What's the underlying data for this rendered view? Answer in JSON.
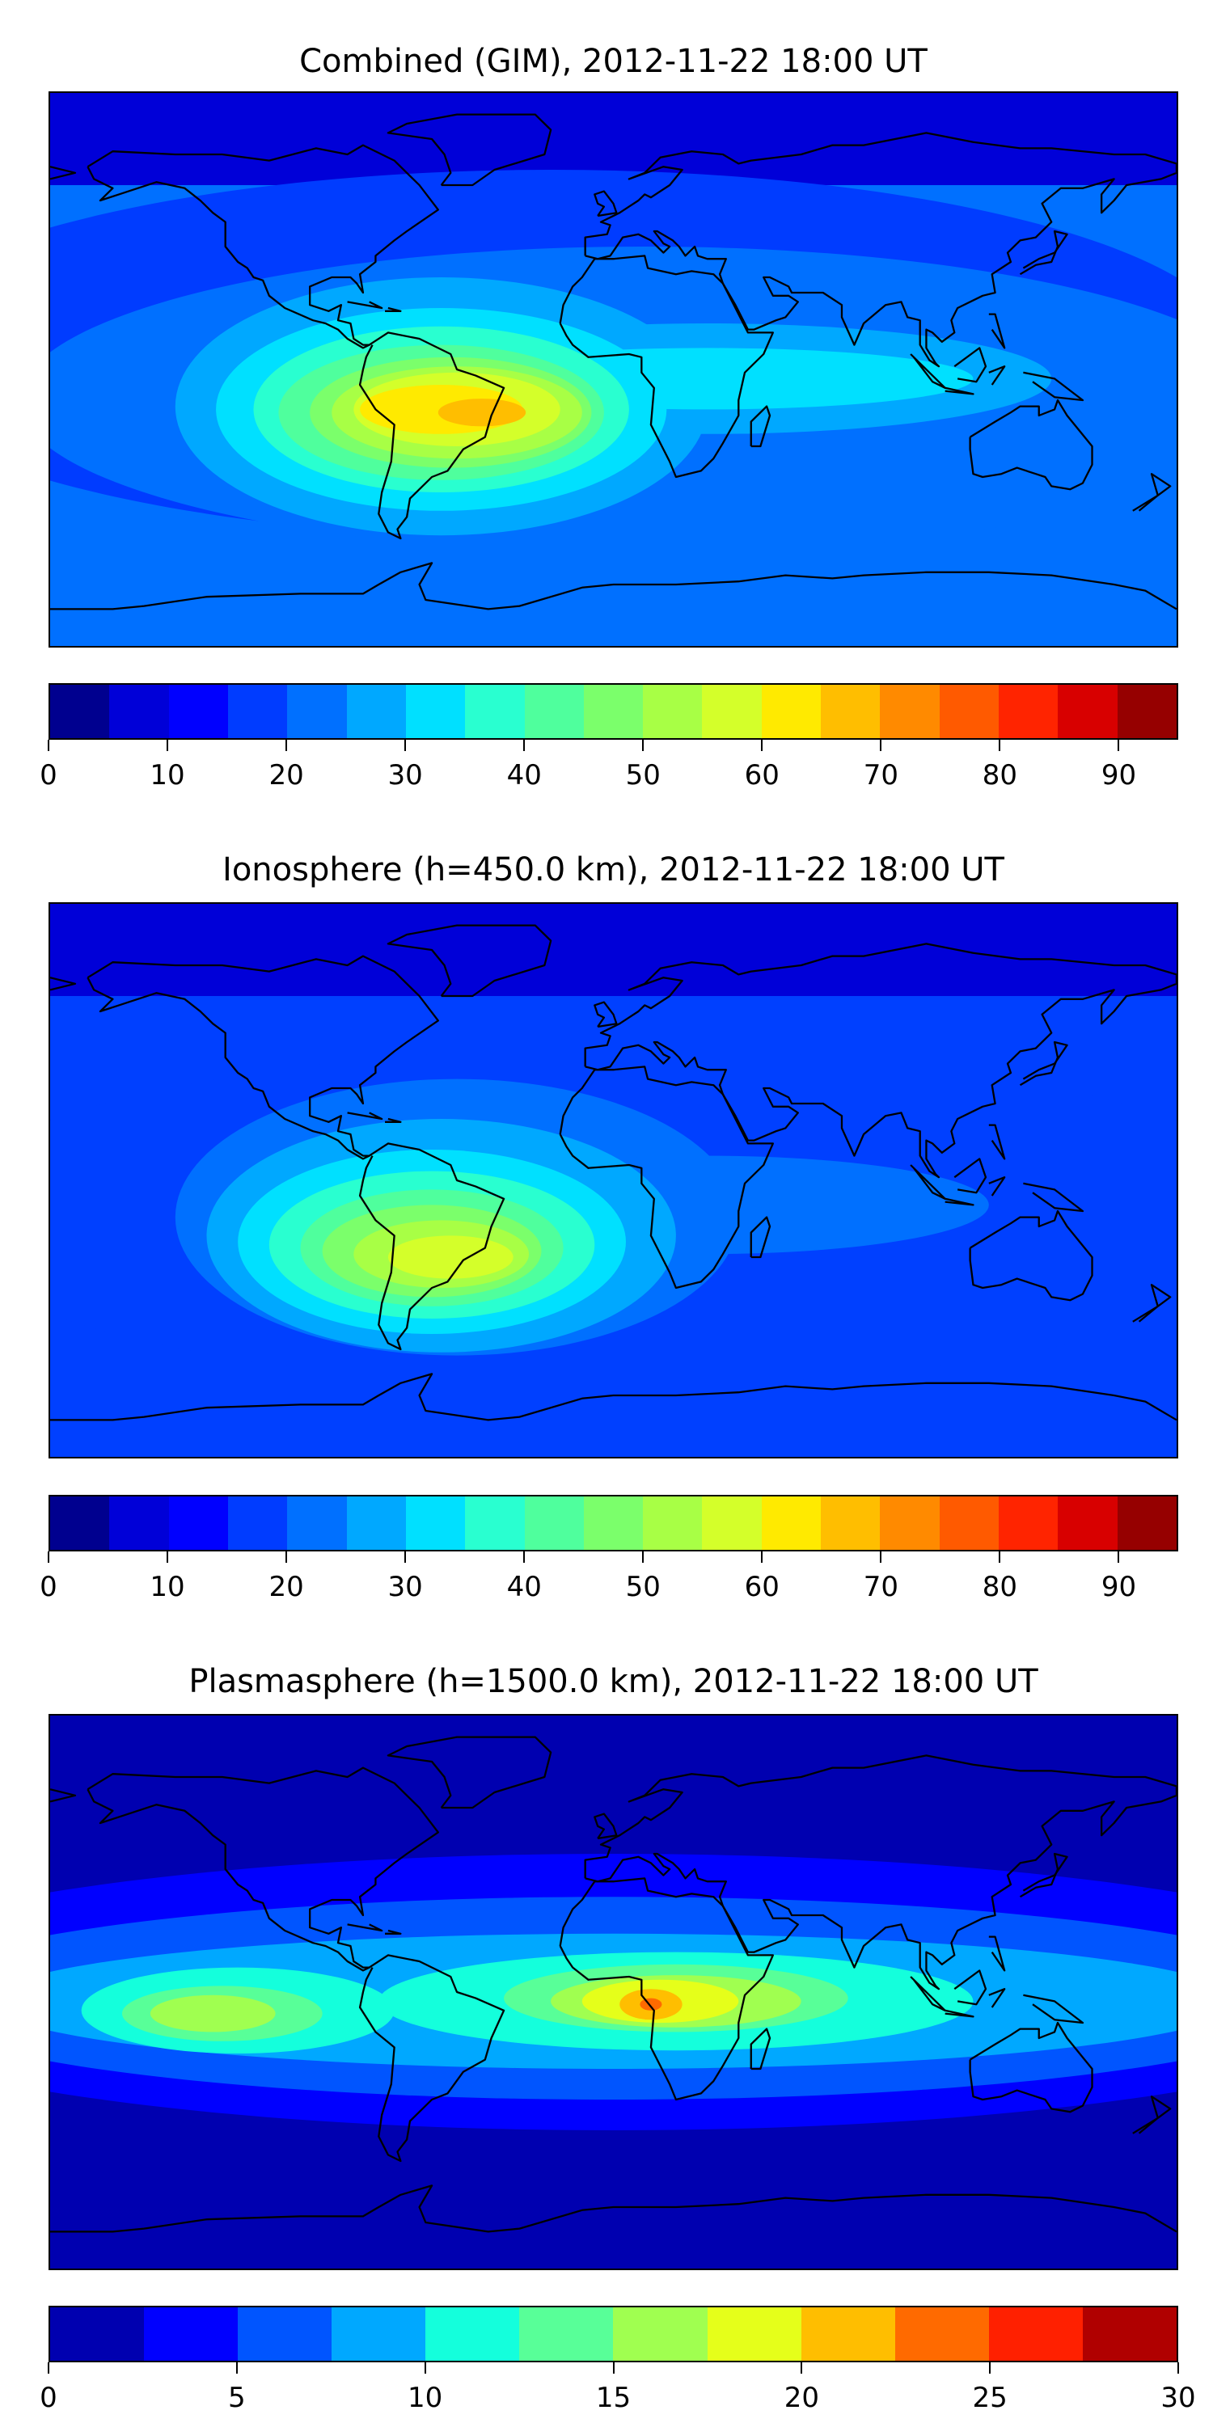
{
  "panels": [
    {
      "title": "Combined (GIM), 2012-11-22 18:00 UT",
      "colorbar": {
        "min": 0,
        "max": 95,
        "step": 5,
        "ticks": [
          "0",
          "10",
          "20",
          "30",
          "40",
          "50",
          "60",
          "70",
          "80",
          "90"
        ],
        "tick_values": [
          0,
          10,
          20,
          30,
          40,
          50,
          60,
          70,
          80,
          90
        ],
        "colors": [
          "#00008f",
          "#0000d8",
          "#0000ff",
          "#003cff",
          "#0070ff",
          "#00a8ff",
          "#00e0ff",
          "#29ffd0",
          "#4fff9d",
          "#7bff6b",
          "#a8ff45",
          "#d4ff2a",
          "#ffea00",
          "#ffbe00",
          "#ff8a00",
          "#ff5a00",
          "#ff2400",
          "#d80000",
          "#960000"
        ]
      }
    },
    {
      "title": "Ionosphere  (h=450.0 km), 2012-11-22 18:00 UT",
      "colorbar": {
        "min": 0,
        "max": 95,
        "step": 5,
        "ticks": [
          "0",
          "10",
          "20",
          "30",
          "40",
          "50",
          "60",
          "70",
          "80",
          "90"
        ],
        "tick_values": [
          0,
          10,
          20,
          30,
          40,
          50,
          60,
          70,
          80,
          90
        ],
        "colors": [
          "#00008f",
          "#0000d8",
          "#0000ff",
          "#003cff",
          "#0070ff",
          "#00a8ff",
          "#00e0ff",
          "#29ffd0",
          "#4fff9d",
          "#7bff6b",
          "#a8ff45",
          "#d4ff2a",
          "#ffea00",
          "#ffbe00",
          "#ff8a00",
          "#ff5a00",
          "#ff2400",
          "#d80000",
          "#960000"
        ]
      }
    },
    {
      "title": "Plasmasphere (h=1500.0 km), 2012-11-22 18:00 UT",
      "colorbar": {
        "min": 0,
        "max": 30,
        "step": 2.5,
        "ticks": [
          "0",
          "5",
          "10",
          "15",
          "20",
          "25",
          "30"
        ],
        "tick_values": [
          0,
          5,
          10,
          15,
          20,
          25,
          30
        ],
        "colors": [
          "#0000b0",
          "#0000ff",
          "#0055ff",
          "#00a8ff",
          "#14ffdc",
          "#58ff98",
          "#a0ff50",
          "#e5ff1a",
          "#ffbe00",
          "#ff6a00",
          "#ff2000",
          "#b00000"
        ]
      }
    }
  ]
}
